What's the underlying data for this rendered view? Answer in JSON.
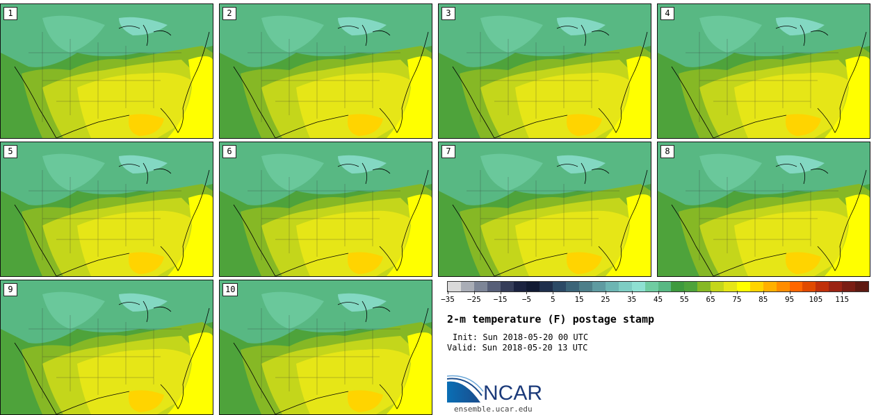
{
  "panels": [
    {
      "label": "1"
    },
    {
      "label": "2"
    },
    {
      "label": "3"
    },
    {
      "label": "4"
    },
    {
      "label": "5"
    },
    {
      "label": "6"
    },
    {
      "label": "7"
    },
    {
      "label": "8"
    },
    {
      "label": "9"
    },
    {
      "label": "10"
    }
  ],
  "colorbar": {
    "colors": [
      "#d9d9d9",
      "#a9adb6",
      "#7d8597",
      "#575f78",
      "#353d59",
      "#1b2340",
      "#111a33",
      "#1f2f4c",
      "#2c4a66",
      "#3b6478",
      "#4e7f8a",
      "#5f9ba1",
      "#6db5b3",
      "#7ecdc3",
      "#8ee0d2",
      "#6fcca1",
      "#58b883",
      "#3e9a3e",
      "#4ea33b",
      "#86b825",
      "#c4d61b",
      "#e6e617",
      "#ffff00",
      "#ffd400",
      "#ffb000",
      "#ff8c00",
      "#ff6600",
      "#e14a00",
      "#c0300a",
      "#9b2414",
      "#7a1e14",
      "#5e1a12"
    ],
    "tick_labels": [
      "−35",
      "−25",
      "−15",
      "−5",
      "5",
      "15",
      "25",
      "35",
      "45",
      "55",
      "65",
      "75",
      "85",
      "95",
      "105",
      "115"
    ]
  },
  "title": "2-m temperature (F) postage stamp",
  "init": "Init: Sun 2018-05-20 00 UTC",
  "valid": "Valid: Sun 2018-05-20 13 UTC",
  "logo_text": "NCAR",
  "site": "ensemble.ucar.edu"
}
